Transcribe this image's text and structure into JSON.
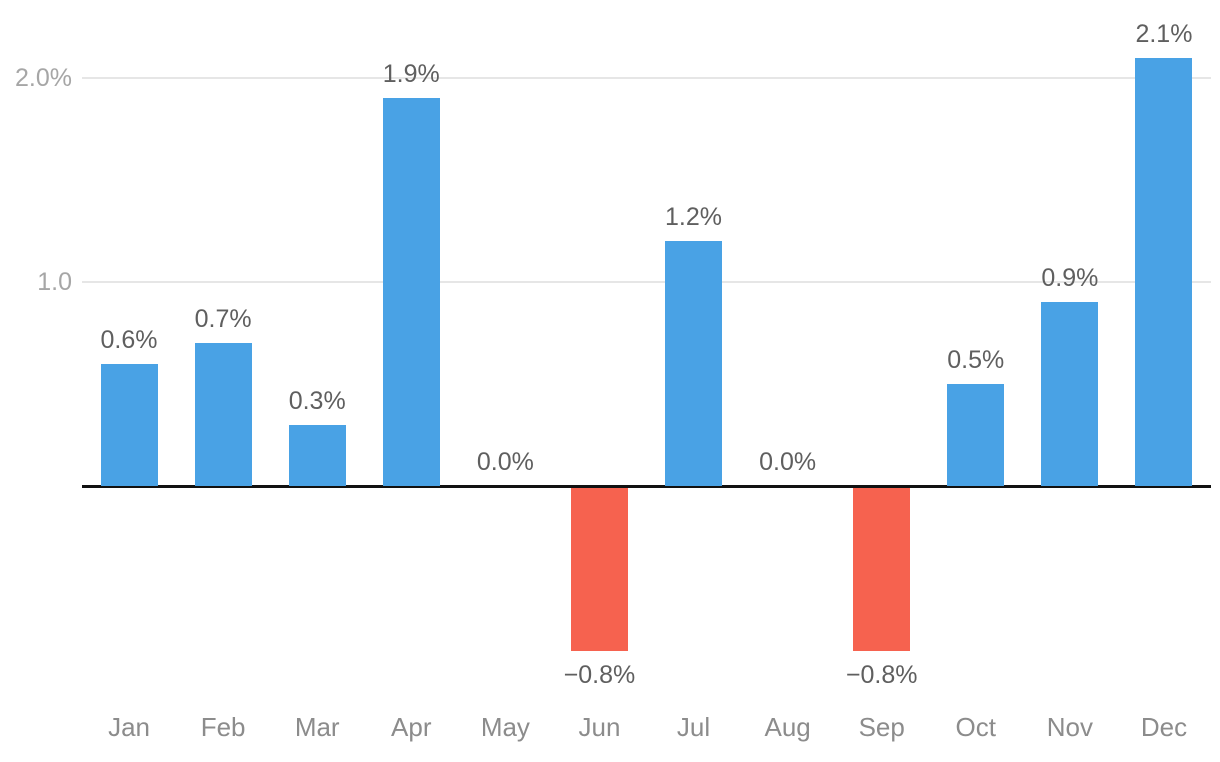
{
  "chart_data": {
    "type": "bar",
    "categories": [
      "Jan",
      "Feb",
      "Mar",
      "Apr",
      "May",
      "Jun",
      "Jul",
      "Aug",
      "Sep",
      "Oct",
      "Nov",
      "Dec"
    ],
    "values": [
      0.6,
      0.7,
      0.3,
      1.9,
      0.0,
      -0.8,
      1.2,
      0.0,
      -0.8,
      0.5,
      0.9,
      2.1
    ],
    "labels": [
      "0.6%",
      "0.7%",
      "0.3%",
      "1.9%",
      "0.0%",
      "−0.8%",
      "1.2%",
      "0.0%",
      "−0.8%",
      "0.5%",
      "0.9%",
      "2.1%"
    ],
    "title": "",
    "xlabel": "",
    "ylabel": "",
    "ylim": [
      -1.1,
      2.35
    ],
    "yticks": [
      {
        "value": 1.0,
        "label": "1.0"
      },
      {
        "value": 2.0,
        "label": "2.0%"
      }
    ],
    "grid": "horizontal-at-yticks",
    "legend": "none",
    "zero_baseline": true,
    "colors": {
      "positive_bar": "#49a2e5",
      "negative_bar": "#f6624f",
      "zero_line": "#111111",
      "gridline": "#e6e6e6",
      "value_label": "#5f5f5f",
      "ytick_label": "#a6a6a6",
      "category_label": "#8c8c8c",
      "background": "#ffffff"
    }
  }
}
